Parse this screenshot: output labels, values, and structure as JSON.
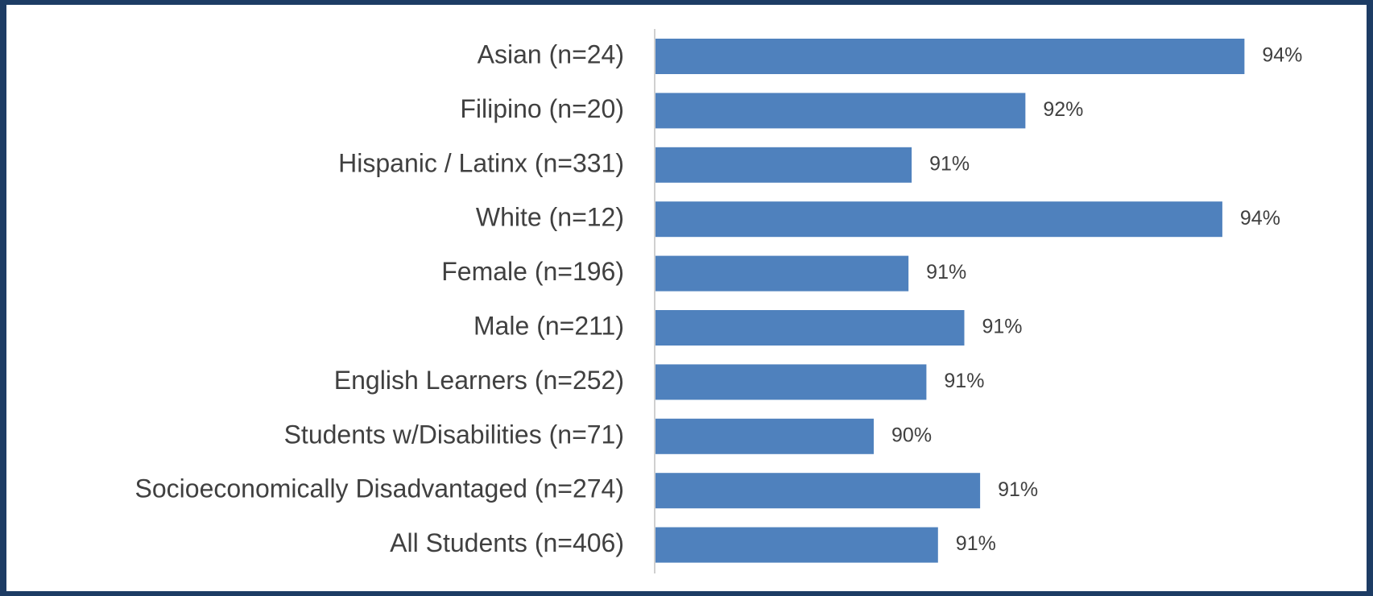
{
  "chart_data": {
    "type": "hbar",
    "categories": [
      "Asian (n=24)",
      "Filipino (n=20)",
      "Hispanic / Latinx (n=331)",
      "White (n=12)",
      "Female (n=196)",
      "Male (n=211)",
      "English Learners (n=252)",
      "Students w/Disabilities (n=71)",
      "Socioeconomically Disadvantaged (n=274)",
      "All Students (n=406)"
    ],
    "values": [
      93.8,
      91.72,
      90.64,
      93.59,
      90.61,
      91.14,
      90.78,
      90.28,
      91.29,
      90.89
    ],
    "value_labels": [
      "94%",
      "92%",
      "91%",
      "94%",
      "91%",
      "91%",
      "91%",
      "90%",
      "91%",
      "91%"
    ],
    "color": "#4f81bd",
    "xlim": [
      88.2,
      94.6
    ]
  }
}
